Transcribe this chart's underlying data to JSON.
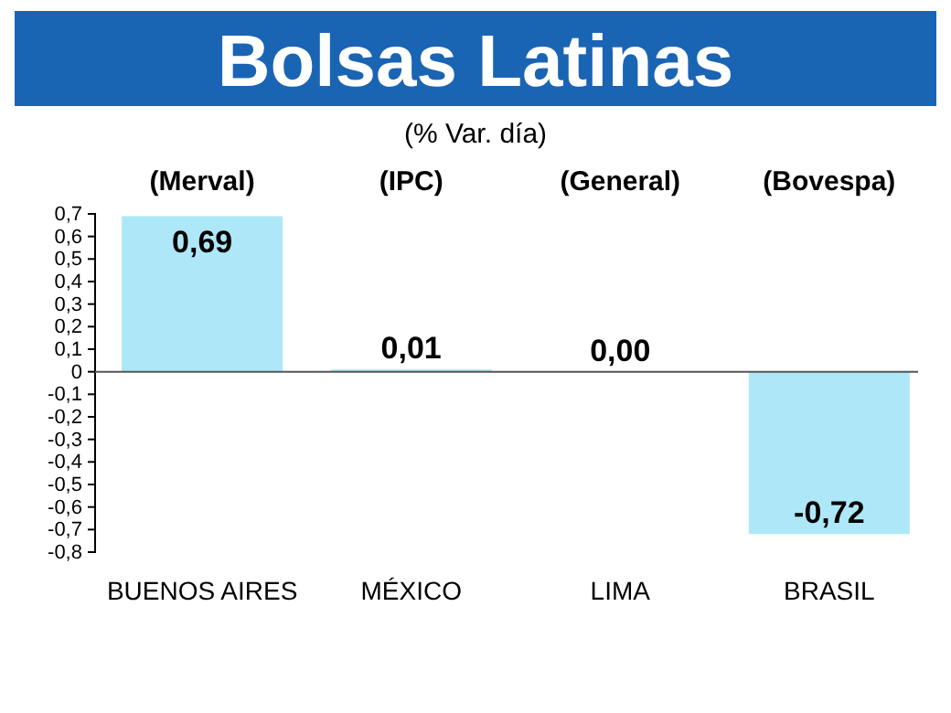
{
  "chart_data": {
    "type": "bar",
    "title": "Bolsas Latinas",
    "subtitle": "(% Var. día)",
    "categories": [
      "BUENOS AIRES",
      "MÉXICO",
      "LIMA",
      "BRASIL"
    ],
    "values": [
      0.69,
      0.01,
      0.0,
      -0.72
    ],
    "value_labels": [
      "0,69",
      "0,01",
      "0,00",
      "-0,72"
    ],
    "color": "#aee8f8",
    "ylim": [
      -0.8,
      0.7
    ],
    "yticks": [
      {
        "value": 0.7,
        "label": "0,7"
      },
      {
        "value": 0.6,
        "label": "0,6"
      },
      {
        "value": 0.5,
        "label": "0,5"
      },
      {
        "value": 0.4,
        "label": "0,4"
      },
      {
        "value": 0.3,
        "label": "0,3"
      },
      {
        "value": 0.2,
        "label": "0,2"
      },
      {
        "value": 0.1,
        "label": "0,1"
      },
      {
        "value": 0,
        "label": "0"
      },
      {
        "value": -0.1,
        "label": "-0,1"
      },
      {
        "value": -0.2,
        "label": "-0,2"
      },
      {
        "value": -0.3,
        "label": "-0,3"
      },
      {
        "value": -0.4,
        "label": "-0,4"
      },
      {
        "value": -0.5,
        "label": "-0,5"
      },
      {
        "value": -0.6,
        "label": "-0,6"
      },
      {
        "value": -0.7,
        "label": "-0,7"
      },
      {
        "value": -0.8,
        "label": "-0,8"
      }
    ],
    "annotations": [
      "(Merval)",
      "(IPC)",
      "(General)",
      "(Bovespa)"
    ]
  }
}
